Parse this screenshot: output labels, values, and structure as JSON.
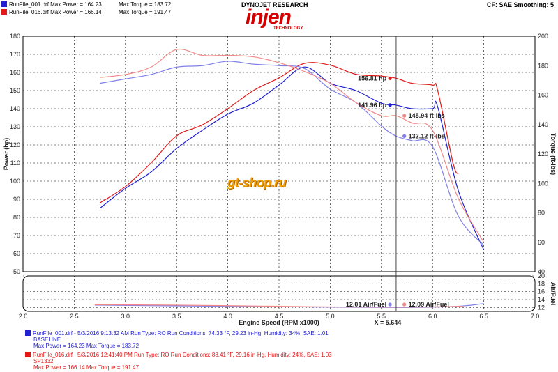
{
  "header": {
    "run1_line": "RunFile_001.drf Max Power = 164.23",
    "run1_torque": "Max Torque = 183.72",
    "run2_line": "RunFile_016.drf Max Power = 166.14",
    "run2_torque": "Max Torque = 191.47",
    "brand_top": "DYNOJET RESEARCH",
    "brand_logo": "injen",
    "brand_sub": "TECHNOLOGY",
    "settings": "CF: SAE  Smoothing: 5"
  },
  "watermark": "gt-shop.ru",
  "colors": {
    "run1": "#2020d0",
    "run1_light": "#8080e8",
    "run2": "#e01818",
    "run2_light": "#f08888"
  },
  "chart_data": [
    {
      "type": "line",
      "xlabel": "Engine Speed (RPM x1000)",
      "ylabel": "Power (hp)",
      "y2label": "Torque (ft-lbs)",
      "xlim": [
        2.0,
        7.0
      ],
      "ylim": [
        50,
        180
      ],
      "y2lim": [
        40,
        200
      ],
      "x_ticks": [
        "2.0",
        "2.5",
        "3.0",
        "3.5",
        "4.0",
        "4.5",
        "5.0",
        "5.5",
        "6.0",
        "6.5",
        "7.0"
      ],
      "y_ticks": [
        "50",
        "60",
        "70",
        "80",
        "90",
        "100",
        "110",
        "120",
        "130",
        "140",
        "150",
        "160",
        "170",
        "180"
      ],
      "y2_ticks": [
        "40",
        "60",
        "80",
        "100",
        "120",
        "140",
        "160",
        "180",
        "200"
      ],
      "cursor_x": 5.644,
      "cursor_label": "X = 5.644",
      "series": [
        {
          "name": "RunFile_001 Power",
          "axis": "left",
          "x": [
            2.75,
            3.0,
            3.25,
            3.5,
            3.75,
            4.0,
            4.25,
            4.5,
            4.75,
            5.0,
            5.25,
            5.5,
            5.644,
            5.8,
            6.0,
            6.05,
            6.25,
            6.5
          ],
          "y": [
            85,
            96,
            105,
            118,
            128,
            137,
            143,
            153,
            163,
            154,
            150,
            143,
            141.96,
            140,
            140,
            141,
            95,
            62
          ]
        },
        {
          "name": "RunFile_016 Power",
          "axis": "left",
          "x": [
            2.75,
            3.0,
            3.25,
            3.5,
            3.75,
            4.0,
            4.25,
            4.5,
            4.75,
            5.0,
            5.25,
            5.5,
            5.644,
            5.8,
            6.0,
            6.05,
            6.2,
            6.25
          ],
          "y": [
            88,
            97,
            110,
            125,
            131,
            140,
            150,
            157,
            165,
            164,
            159,
            158,
            156.81,
            154,
            153,
            150,
            110,
            104
          ]
        },
        {
          "name": "RunFile_001 Torque",
          "axis": "right",
          "x": [
            2.75,
            3.0,
            3.25,
            3.5,
            3.75,
            4.0,
            4.25,
            4.5,
            4.75,
            5.0,
            5.25,
            5.5,
            5.644,
            5.8,
            6.0,
            6.25,
            6.5
          ],
          "y": [
            168,
            171,
            174,
            179,
            180,
            183,
            181,
            180,
            178,
            164,
            155,
            139,
            132.12,
            129,
            125,
            78,
            58
          ]
        },
        {
          "name": "RunFile_016 Torque",
          "axis": "right",
          "x": [
            2.75,
            3.0,
            3.25,
            3.5,
            3.75,
            4.0,
            4.25,
            4.5,
            4.75,
            5.0,
            5.25,
            5.5,
            5.644,
            5.8,
            6.0,
            6.25,
            6.5
          ],
          "y": [
            172,
            174,
            179,
            191,
            187,
            187,
            186,
            182,
            176,
            168,
            155,
            146,
            145.94,
            141,
            136,
            90,
            60
          ]
        }
      ],
      "markers": [
        {
          "label": "156.81 hp",
          "x": 5.644,
          "y": 156.81,
          "axis": "left",
          "series": 1
        },
        {
          "label": "141.96 hp",
          "x": 5.644,
          "y": 141.96,
          "axis": "left",
          "series": 0
        },
        {
          "label": "145.94 ft-lbs",
          "x": 5.644,
          "y": 145.94,
          "axis": "right",
          "series": 3
        },
        {
          "label": "132.12 ft-lbs",
          "x": 5.644,
          "y": 132.12,
          "axis": "right",
          "series": 2
        }
      ]
    },
    {
      "type": "line",
      "ylabel": "Air/Fuel",
      "xlim": [
        2.0,
        7.0
      ],
      "ylim": [
        11,
        20
      ],
      "y_ticks": [
        "12",
        "14",
        "16",
        "18",
        "20"
      ],
      "series": [
        {
          "name": "RunFile_001 Air/Fuel",
          "x": [
            2.7,
            3.5,
            4.5,
            5.0,
            5.644,
            6.0,
            6.3,
            6.5
          ],
          "y": [
            12.6,
            12.4,
            12.2,
            12.1,
            12.01,
            12.1,
            12.4,
            13.0
          ]
        },
        {
          "name": "RunFile_016 Air/Fuel",
          "x": [
            2.7,
            3.5,
            4.5,
            5.0,
            5.644,
            6.0,
            6.3
          ],
          "y": [
            12.7,
            12.6,
            12.3,
            12.15,
            12.09,
            12.15,
            12.3
          ]
        }
      ],
      "markers": [
        {
          "label": "12.01 Air/Fuel",
          "x": 5.644,
          "y": 12.01,
          "series": 0
        },
        {
          "label": "12.09 Air/Fuel",
          "x": 5.644,
          "y": 12.09,
          "series": 1
        }
      ]
    }
  ],
  "footer": {
    "run1": {
      "line1": "RunFile_001.drf - 5/3/2016 9:13:32 AM  Run Type: RO  Run Conditions: 74.33 °F, 29.23 in-Hg,  Humidity:  34%, SAE: 1.01",
      "line2": "BASELINE",
      "line3": "Max Power = 164.23  Max Torque = 183.72"
    },
    "run2": {
      "line1": "RunFile_016.drf - 5/3/2016 12:41:40 PM  Run Type: RO  Run Conditions: 88.41 °F, 29.16 in-Hg,  Humidity:  24%, SAE: 1.03",
      "line2": "SP1332",
      "line3": "Max Power = 166.14  Max Torque = 191.47"
    }
  }
}
